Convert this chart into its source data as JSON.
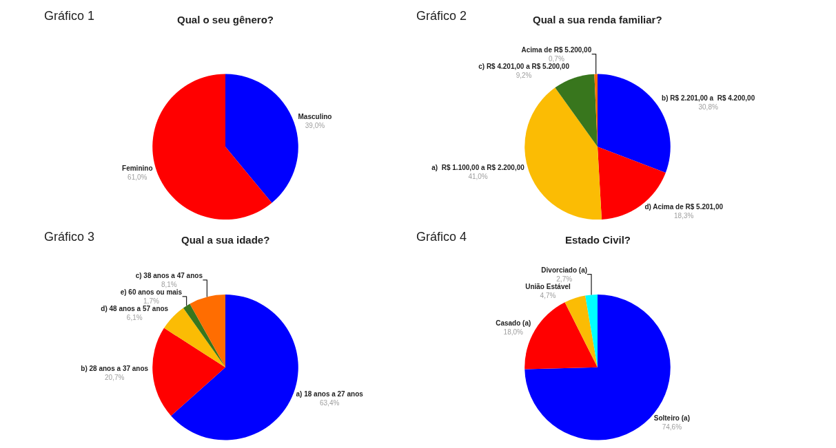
{
  "chart_data": [
    {
      "type": "pie",
      "title": "Qual o seu gênero?",
      "annotations": [
        "Gráfico 1"
      ],
      "categories": [
        "Masculino",
        "Feminino"
      ],
      "values": [
        39.0,
        61.0
      ],
      "value_labels": [
        "39,0%",
        "61,0%"
      ],
      "colors": [
        "#0000ff",
        "#ff0000"
      ]
    },
    {
      "type": "pie",
      "title": "Qual a sua renda familiar?",
      "annotations": [
        "Gráfico 2"
      ],
      "categories": [
        "b) R$ 2.201,00 a  R$ 4.200,00",
        "d) Acima de R$ 5.201,00",
        "a)  R$ 1.100,00 a R$ 2.200,00",
        "c) R$ 4.201,00 a R$ 5.200,00",
        "Acima de R$ 5.200,00"
      ],
      "values": [
        30.8,
        18.3,
        41.0,
        9.2,
        0.7
      ],
      "value_labels": [
        "30,8%",
        "18,3%",
        "41,0%",
        "9,2%",
        "0,7%"
      ],
      "colors": [
        "#0000ff",
        "#ff0000",
        "#fbbc04",
        "#38761d",
        "#ff6d01"
      ]
    },
    {
      "type": "pie",
      "title": "Qual a sua idade?",
      "annotations": [
        "Gráfico 3"
      ],
      "categories": [
        "a) 18 anos a 27 anos",
        "b) 28 anos a 37 anos",
        "d) 48 anos a 57 anos",
        "e) 60 anos ou mais",
        "c) 38 anos a 47 anos"
      ],
      "values": [
        63.4,
        20.7,
        6.1,
        1.7,
        8.1
      ],
      "value_labels": [
        "63,4%",
        "20,7%",
        "6,1%",
        "1,7%",
        "8,1%"
      ],
      "colors": [
        "#0000ff",
        "#ff0000",
        "#fbbc04",
        "#38761d",
        "#ff6d01"
      ]
    },
    {
      "type": "pie",
      "title": "Estado Civil?",
      "annotations": [
        "Gráfico 4"
      ],
      "categories": [
        "Solteiro (a)",
        "Casado (a)",
        "União Estável",
        "Divorciado (a)"
      ],
      "values": [
        74.6,
        18.0,
        4.7,
        2.7
      ],
      "value_labels": [
        "74,6%",
        "18,0%",
        "4,7%",
        "2,7%"
      ],
      "colors": [
        "#0000ff",
        "#ff0000",
        "#fbbc04",
        "#00ffff"
      ]
    }
  ]
}
